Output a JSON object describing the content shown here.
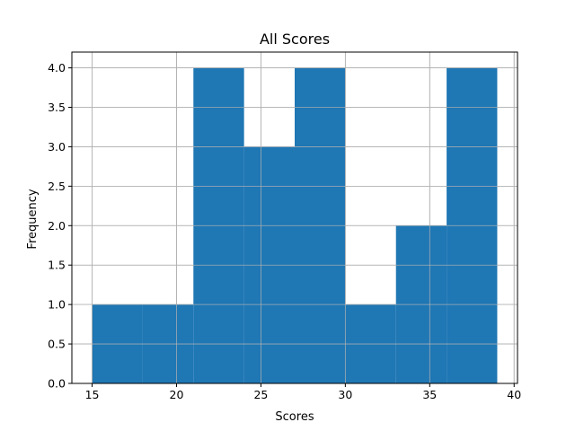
{
  "chart_data": {
    "type": "bar",
    "title": "All Scores",
    "xlabel": "Scores",
    "ylabel": "Frequency",
    "bins": [
      {
        "x0": 15,
        "x1": 18,
        "count": 1
      },
      {
        "x0": 18,
        "x1": 21,
        "count": 1
      },
      {
        "x0": 21,
        "x1": 24,
        "count": 4
      },
      {
        "x0": 24,
        "x1": 27,
        "count": 3
      },
      {
        "x0": 27,
        "x1": 30,
        "count": 4
      },
      {
        "x0": 30,
        "x1": 33,
        "count": 1
      },
      {
        "x0": 33,
        "x1": 36,
        "count": 2
      },
      {
        "x0": 36,
        "x1": 39,
        "count": 4
      }
    ],
    "xlim": [
      13.8,
      40.2
    ],
    "ylim": [
      0,
      4.2
    ],
    "xticks": [
      15,
      20,
      25,
      30,
      35,
      40
    ],
    "xtick_labels": [
      "15",
      "20",
      "25",
      "30",
      "35",
      "40"
    ],
    "yticks": [
      0,
      0.5,
      1,
      1.5,
      2,
      2.5,
      3,
      3.5,
      4
    ],
    "ytick_labels": [
      "0.0",
      "0.5",
      "1.0",
      "1.5",
      "2.0",
      "2.5",
      "3.0",
      "3.5",
      "4.0"
    ],
    "grid": true,
    "legend": "none",
    "colors": {
      "bar": "#1f77b4",
      "grid": "#b0b0b0",
      "axis": "#000000"
    }
  }
}
